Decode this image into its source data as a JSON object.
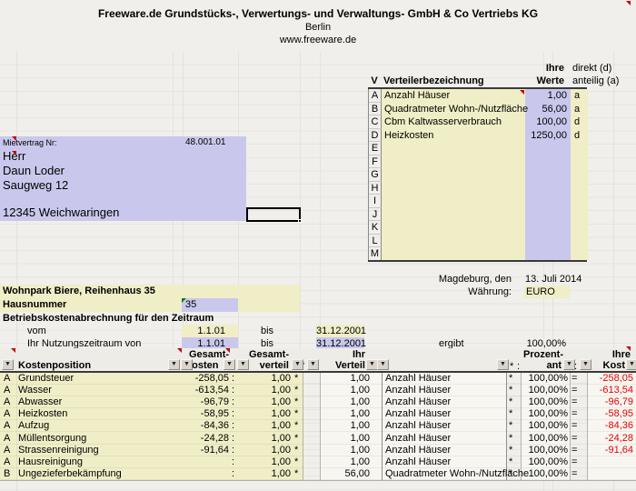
{
  "company": {
    "name": "Freeware.de Grundstücks-, Verwertungs- und Verwaltungs- GmbH & Co Vertriebs KG",
    "city": "Berlin",
    "website": "www.freeware.de"
  },
  "verteiler_table": {
    "col_v": "V",
    "col_bezeichnung": "Verteilerbezeichnung",
    "col_werte_line1": "Ihre",
    "col_werte_line2": "Werte",
    "col_direkt": "direkt (d)",
    "col_anteilig": "anteilig (a)",
    "rows": [
      {
        "key": "A",
        "label": "Anzahl Häuser",
        "value": "1,00",
        "mode": "a"
      },
      {
        "key": "B",
        "label": "Quadratmeter Wohn-/Nutzfläche",
        "value": "56,00",
        "mode": "a"
      },
      {
        "key": "C",
        "label": "Cbm Kaltwasserverbrauch",
        "value": "100,00",
        "mode": "d"
      },
      {
        "key": "D",
        "label": "Heizkosten",
        "value": "1250,00",
        "mode": "d"
      },
      {
        "key": "E",
        "label": "",
        "value": "",
        "mode": ""
      },
      {
        "key": "F",
        "label": "",
        "value": "",
        "mode": ""
      },
      {
        "key": "G",
        "label": "",
        "value": "",
        "mode": ""
      },
      {
        "key": "H",
        "label": "",
        "value": "",
        "mode": ""
      },
      {
        "key": "I",
        "label": "",
        "value": "",
        "mode": ""
      },
      {
        "key": "J",
        "label": "",
        "value": "",
        "mode": ""
      },
      {
        "key": "K",
        "label": "",
        "value": "",
        "mode": ""
      },
      {
        "key": "L",
        "label": "",
        "value": "",
        "mode": ""
      },
      {
        "key": "M",
        "label": "",
        "value": "",
        "mode": ""
      }
    ]
  },
  "tenant": {
    "mietvertrag_label": "Mietvertrag Nr:",
    "mietvertrag_nr": "48.001.01",
    "salutation": "Herr",
    "name": "Daun Loder",
    "street": "Saugweg 12",
    "city": "12345 Weichwaringen"
  },
  "meta": {
    "place_label": "Magdeburg, den",
    "date": "13. Juli 2014",
    "currency_label": "Währung:",
    "currency": "EURO"
  },
  "property": {
    "title": "Wohnpark Biere, Reihenhaus 35",
    "hausnummer_label": "Hausnummer",
    "hausnummer": "35"
  },
  "period": {
    "title": "Betriebskostenabrechnung für den Zeitraum",
    "vom_label": "vom",
    "bis_label": "bis",
    "vom_from": "1.1.01",
    "vom_to": "31.12.2001",
    "nutzung_label": "Ihr Nutzungszeitraum von",
    "nutzung_from": "1.1.01",
    "nutzung_to": "31.12.2001",
    "ergibt_label": "ergibt",
    "percent": "100,00%"
  },
  "cost_table": {
    "headers": {
      "kostenposition": "Kostenposition",
      "gesamt1": "Gesamt-",
      "kosten": "kosten",
      "gesamt2": "Gesamt-",
      "verteil": "verteil",
      "ihr": "Ihr",
      "verteil2": "Verteil",
      "prozent": "Prozent-",
      "ant": "ant",
      "ihre": "Ihre",
      "kost": "Kost",
      "apos": "'",
      "star": "*",
      "colon": ":"
    },
    "symbols": {
      "colon": ":",
      "star": "*",
      "equals": "="
    },
    "rows": [
      {
        "letter": "A",
        "name": "Grundsteuer",
        "gesamtkosten": "-258,05",
        "gesamtverteil": "1,00",
        "ihrverteil": "1,00",
        "verteiler": "Anzahl Häuser",
        "prozent": "100,00%",
        "ihrekosten": "-258,05"
      },
      {
        "letter": "A",
        "name": "Wasser",
        "gesamtkosten": "-613,54",
        "gesamtverteil": "1,00",
        "ihrverteil": "1,00",
        "verteiler": "Anzahl Häuser",
        "prozent": "100,00%",
        "ihrekosten": "-613,54"
      },
      {
        "letter": "A",
        "name": "Abwasser",
        "gesamtkosten": "-96,79",
        "gesamtverteil": "1,00",
        "ihrverteil": "1,00",
        "verteiler": "Anzahl Häuser",
        "prozent": "100,00%",
        "ihrekosten": "-96,79"
      },
      {
        "letter": "A",
        "name": "Heizkosten",
        "gesamtkosten": "-58,95",
        "gesamtverteil": "1,00",
        "ihrverteil": "1,00",
        "verteiler": "Anzahl Häuser",
        "prozent": "100,00%",
        "ihrekosten": "-58,95"
      },
      {
        "letter": "A",
        "name": "Aufzug",
        "gesamtkosten": "-84,36",
        "gesamtverteil": "1,00",
        "ihrverteil": "1,00",
        "verteiler": "Anzahl Häuser",
        "prozent": "100,00%",
        "ihrekosten": "-84,36"
      },
      {
        "letter": "A",
        "name": "Müllentsorgung",
        "gesamtkosten": "-24,28",
        "gesamtverteil": "1,00",
        "ihrverteil": "1,00",
        "verteiler": "Anzahl Häuser",
        "prozent": "100,00%",
        "ihrekosten": "-24,28"
      },
      {
        "letter": "A",
        "name": "Strassenreinigung",
        "gesamtkosten": "-91,64",
        "gesamtverteil": "1,00",
        "ihrverteil": "1,00",
        "verteiler": "Anzahl Häuser",
        "prozent": "100,00%",
        "ihrekosten": "-91,64"
      },
      {
        "letter": "A",
        "name": "Hausreinigung",
        "gesamtkosten": "",
        "gesamtverteil": "1,00",
        "ihrverteil": "1,00",
        "verteiler": "Anzahl Häuser",
        "prozent": "100,00%",
        "ihrekosten": ""
      },
      {
        "letter": "B",
        "name": "Ungezieferbekämpfung",
        "gesamtkosten": "",
        "gesamtverteil": "1,00",
        "ihrverteil": "56,00",
        "verteiler": "Quadratmeter Wohn-/Nutzfläche",
        "prozent": "100,00%",
        "ihrekosten": ""
      }
    ]
  },
  "icons": {
    "filter_arrow": "▼"
  },
  "colors": {
    "yellow": "#efeec6",
    "purple": "#c9c8ec",
    "negative_red": "#e80000",
    "sheet_bg": "#f0efeb",
    "grid_dark": "#3a3a3a"
  }
}
